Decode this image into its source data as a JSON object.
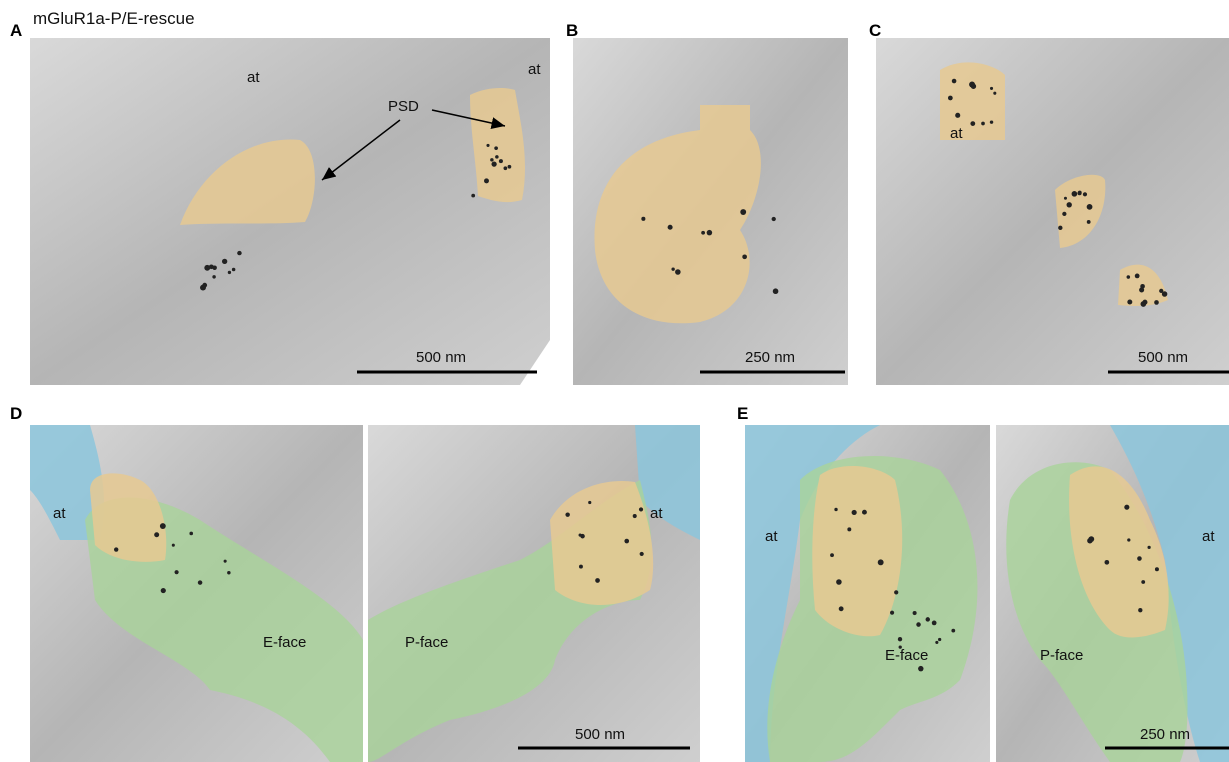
{
  "title": "mGluR1a-P/E-rescue",
  "panels": [
    {
      "letter": "A",
      "labels": [
        "at",
        "at",
        "PSD"
      ],
      "scale_bar": "500 nm"
    },
    {
      "letter": "B",
      "scale_bar": "250 nm"
    },
    {
      "letter": "C",
      "labels": [
        "at"
      ],
      "scale_bar": "500 nm"
    },
    {
      "letter": "D",
      "labels": [
        "at",
        "at",
        "E-face",
        "P-face"
      ],
      "scale_bar": "500 nm"
    },
    {
      "letter": "E",
      "labels": [
        "at",
        "at",
        "E-face",
        "P-face"
      ],
      "scale_bar": "250 nm"
    }
  ]
}
